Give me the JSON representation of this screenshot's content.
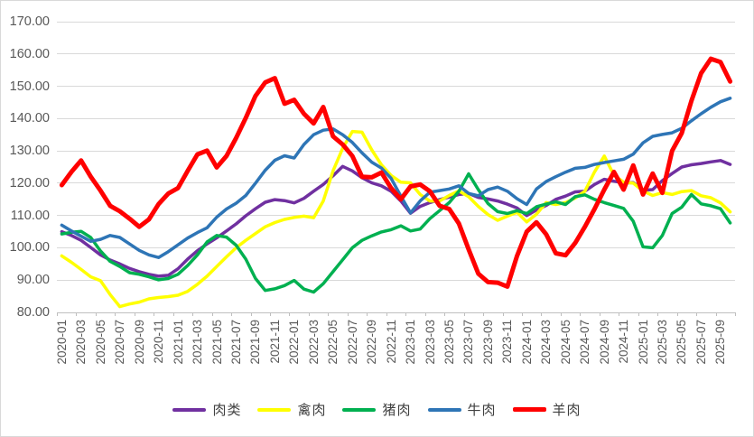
{
  "chart_data": {
    "type": "line",
    "title": "",
    "xlabel": "",
    "ylabel": "",
    "ylim": [
      80,
      170
    ],
    "y_tick_labels": [
      "80.00",
      "90.00",
      "100.00",
      "110.00",
      "120.00",
      "130.00",
      "140.00",
      "150.00",
      "160.00",
      "170.00"
    ],
    "grid": true,
    "legend_position": "bottom",
    "x_label_interval": 2,
    "x": [
      "2020-01",
      "2020-02",
      "2020-03",
      "2020-04",
      "2020-05",
      "2020-06",
      "2020-07",
      "2020-08",
      "2020-09",
      "2020-10",
      "2020-11",
      "2020-12",
      "2021-01",
      "2021-02",
      "2021-03",
      "2021-04",
      "2021-05",
      "2021-06",
      "2021-07",
      "2021-08",
      "2021-09",
      "2021-10",
      "2021-11",
      "2021-12",
      "2022-01",
      "2022-02",
      "2022-03",
      "2022-04",
      "2022-05",
      "2022-06",
      "2022-07",
      "2022-08",
      "2022-09",
      "2022-10",
      "2022-11",
      "2022-12",
      "2023-01",
      "2023-02",
      "2023-03",
      "2023-04",
      "2023-05",
      "2023-06",
      "2023-07",
      "2023-08",
      "2023-09",
      "2023-10",
      "2023-11",
      "2023-12",
      "2024-01",
      "2024-02",
      "2024-03",
      "2024-04",
      "2024-05",
      "2024-06",
      "2024-07",
      "2024-08",
      "2024-09",
      "2024-10",
      "2024-11",
      "2024-12",
      "2025-01",
      "2025-02",
      "2025-03",
      "2025-04",
      "2025-05",
      "2025-06",
      "2025-07",
      "2025-08",
      "2025-09",
      "2025-10"
    ],
    "series": [
      {
        "key": "meat",
        "name": "肉类",
        "color": "#7030A0",
        "width": 3.5,
        "values": [
          105.0,
          103.8,
          102.3,
          100.1,
          97.8,
          96.2,
          95.0,
          93.6,
          92.6,
          91.8,
          91.2,
          91.5,
          93.5,
          96.5,
          99.1,
          101.2,
          103.1,
          105.2,
          107.4,
          109.9,
          112.1,
          114.1,
          114.9,
          114.6,
          113.9,
          115.3,
          117.5,
          119.6,
          122.3,
          125.2,
          123.8,
          121.7,
          120.1,
          119.2,
          117.5,
          114.5,
          110.7,
          112.8,
          114.0,
          114.9,
          115.7,
          116.5,
          116.8,
          115.6,
          115.1,
          114.5,
          113.5,
          112.3,
          110.0,
          111.7,
          113.1,
          115.0,
          116.0,
          117.3,
          117.5,
          119.6,
          121.2,
          120.6,
          120.1,
          120.2,
          117.8,
          118.0,
          120.8,
          123.0,
          125.0,
          125.7,
          126.1,
          126.6,
          127.0,
          125.8
        ]
      },
      {
        "key": "poultry",
        "name": "禽肉",
        "color": "#FFFF00",
        "width": 3.5,
        "values": [
          97.5,
          95.5,
          93.3,
          91.0,
          89.8,
          85.5,
          81.8,
          82.6,
          83.2,
          84.2,
          84.6,
          84.9,
          85.3,
          86.5,
          88.7,
          91.2,
          94.2,
          97.2,
          100.0,
          102.3,
          104.4,
          106.5,
          107.8,
          108.8,
          109.4,
          109.8,
          109.3,
          114.5,
          123.8,
          130.8,
          136.0,
          135.8,
          130.3,
          125.7,
          122.4,
          120.3,
          120.1,
          116.5,
          114.5,
          114.5,
          116.2,
          117.6,
          115.8,
          112.8,
          110.3,
          108.5,
          109.8,
          111.0,
          108.0,
          110.4,
          114.0,
          113.4,
          114.0,
          115.4,
          117.5,
          123.5,
          128.4,
          122.5,
          120.3,
          120.0,
          117.6,
          116.2,
          117.1,
          116.5,
          117.4,
          117.7,
          116.1,
          115.5,
          113.9,
          111.1
        ]
      },
      {
        "key": "pork",
        "name": "猪肉",
        "color": "#00B050",
        "width": 3.5,
        "values": [
          104.3,
          104.8,
          105.1,
          103.2,
          99.0,
          95.8,
          94.2,
          92.3,
          91.8,
          91.0,
          90.1,
          90.5,
          91.8,
          94.5,
          97.8,
          101.8,
          103.8,
          103.3,
          100.8,
          96.5,
          90.5,
          86.8,
          87.3,
          88.3,
          89.9,
          87.2,
          86.3,
          88.9,
          92.6,
          96.3,
          100.0,
          102.3,
          103.7,
          104.9,
          105.6,
          106.8,
          105.2,
          105.8,
          109.0,
          111.5,
          114.0,
          117.5,
          122.9,
          118.0,
          113.7,
          111.2,
          110.6,
          111.5,
          110.6,
          112.7,
          113.5,
          114.2,
          113.4,
          115.8,
          116.4,
          115.0,
          114.0,
          113.1,
          112.2,
          108.2,
          100.3,
          100.0,
          103.8,
          110.6,
          112.6,
          116.5,
          113.6,
          113.0,
          112.1,
          107.7
        ]
      },
      {
        "key": "beef",
        "name": "牛肉",
        "color": "#2E75B6",
        "width": 3.5,
        "values": [
          107.0,
          105.2,
          103.6,
          102.0,
          102.6,
          103.8,
          103.2,
          101.2,
          99.2,
          97.8,
          97.0,
          98.8,
          100.9,
          103.0,
          104.7,
          106.2,
          109.5,
          112.0,
          113.8,
          116.2,
          120.0,
          124.0,
          127.1,
          128.5,
          127.8,
          132.0,
          135.0,
          136.4,
          136.8,
          135.0,
          132.6,
          129.4,
          126.5,
          124.7,
          121.5,
          116.0,
          110.8,
          114.5,
          117.2,
          117.7,
          118.2,
          119.2,
          116.8,
          116.1,
          118.0,
          118.8,
          117.5,
          115.2,
          113.4,
          118.2,
          120.5,
          122.0,
          123.4,
          124.6,
          124.9,
          125.8,
          126.4,
          126.9,
          127.4,
          129.0,
          132.5,
          134.5,
          135.1,
          135.6,
          137.0,
          139.3,
          141.5,
          143.5,
          145.2,
          146.3
        ]
      },
      {
        "key": "mutton",
        "name": "羊肉",
        "color": "#FF0000",
        "width": 5,
        "values": [
          119.4,
          123.5,
          127.0,
          122.0,
          117.7,
          113.0,
          111.3,
          109.0,
          106.5,
          108.8,
          113.5,
          116.8,
          118.5,
          123.8,
          128.9,
          130.1,
          124.9,
          128.4,
          134.0,
          140.2,
          147.0,
          151.2,
          152.5,
          144.6,
          145.8,
          141.5,
          138.5,
          143.6,
          134.5,
          132.0,
          128.4,
          122.0,
          121.8,
          123.3,
          118.5,
          115.0,
          119.0,
          119.6,
          117.5,
          113.0,
          112.0,
          107.5,
          99.5,
          92.0,
          89.4,
          89.2,
          88.0,
          97.5,
          105.0,
          107.9,
          104.2,
          98.3,
          97.7,
          101.5,
          106.5,
          112.0,
          118.0,
          123.5,
          118.0,
          125.5,
          116.5,
          123.0,
          117.0,
          130.0,
          135.5,
          145.5,
          154.0,
          158.5,
          157.5,
          151.5
        ]
      }
    ],
    "colors": {
      "gridline": "#d9d9d9",
      "axis_line": "#bfbfbf",
      "tick_text": "#595959",
      "background": "#ffffff"
    }
  }
}
